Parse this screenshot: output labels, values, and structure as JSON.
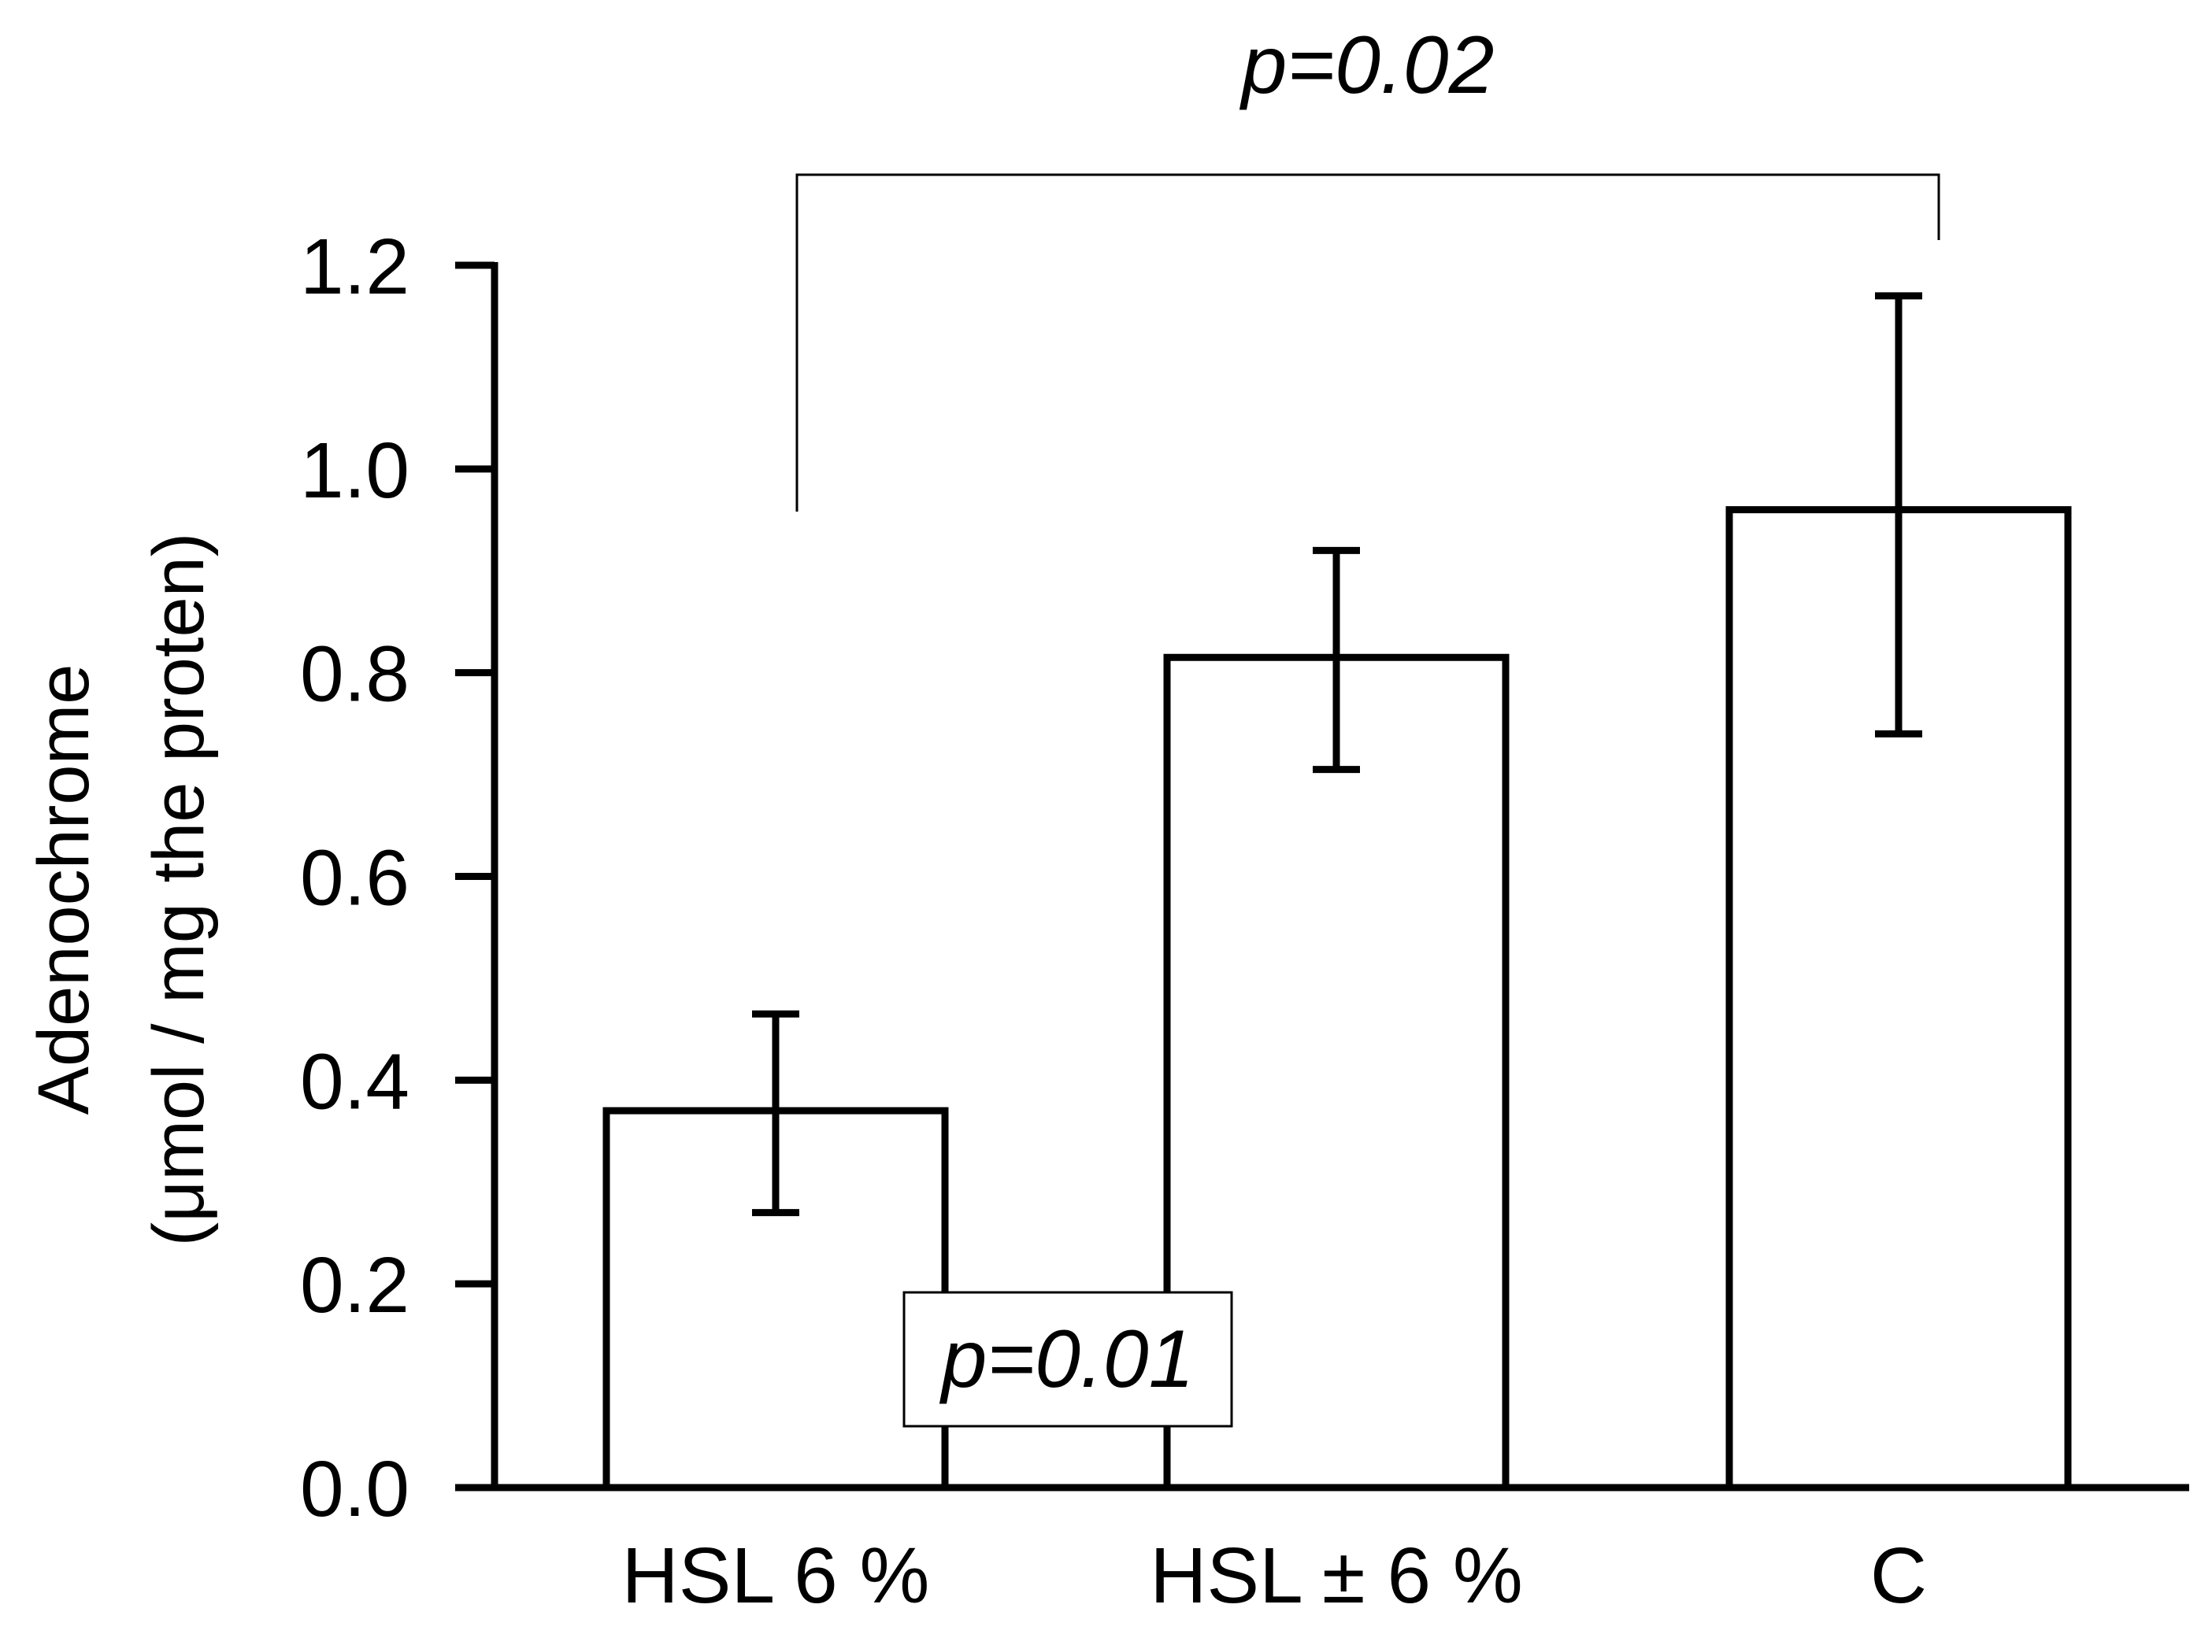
{
  "chart_data": {
    "type": "bar",
    "categories": [
      "HSL 6 %",
      "HSL ± 6 %",
      "C"
    ],
    "values": [
      0.37,
      0.815,
      0.96
    ],
    "error_low": [
      0.27,
      0.705,
      0.74
    ],
    "error_high": [
      0.465,
      0.92,
      1.17
    ],
    "ylabel_line1": "Adenochrome",
    "ylabel_line2": "(μmol / mg the proten)",
    "ylim": [
      0,
      1.2
    ],
    "yticks": [
      0.0,
      0.2,
      0.4,
      0.6,
      0.8,
      1.0,
      1.2
    ],
    "ytick_labels": [
      "0.0",
      "0.2",
      "0.4",
      "0.6",
      "0.8",
      "1.0",
      "1.2"
    ],
    "annotations": {
      "bracket_label": "p=0.02",
      "bracket_from": "HSL 6 %",
      "bracket_to": "C",
      "boxed_label": "p=0.01"
    },
    "colors": {
      "bar_fill": "#ffffff",
      "stroke": "#000000"
    }
  }
}
